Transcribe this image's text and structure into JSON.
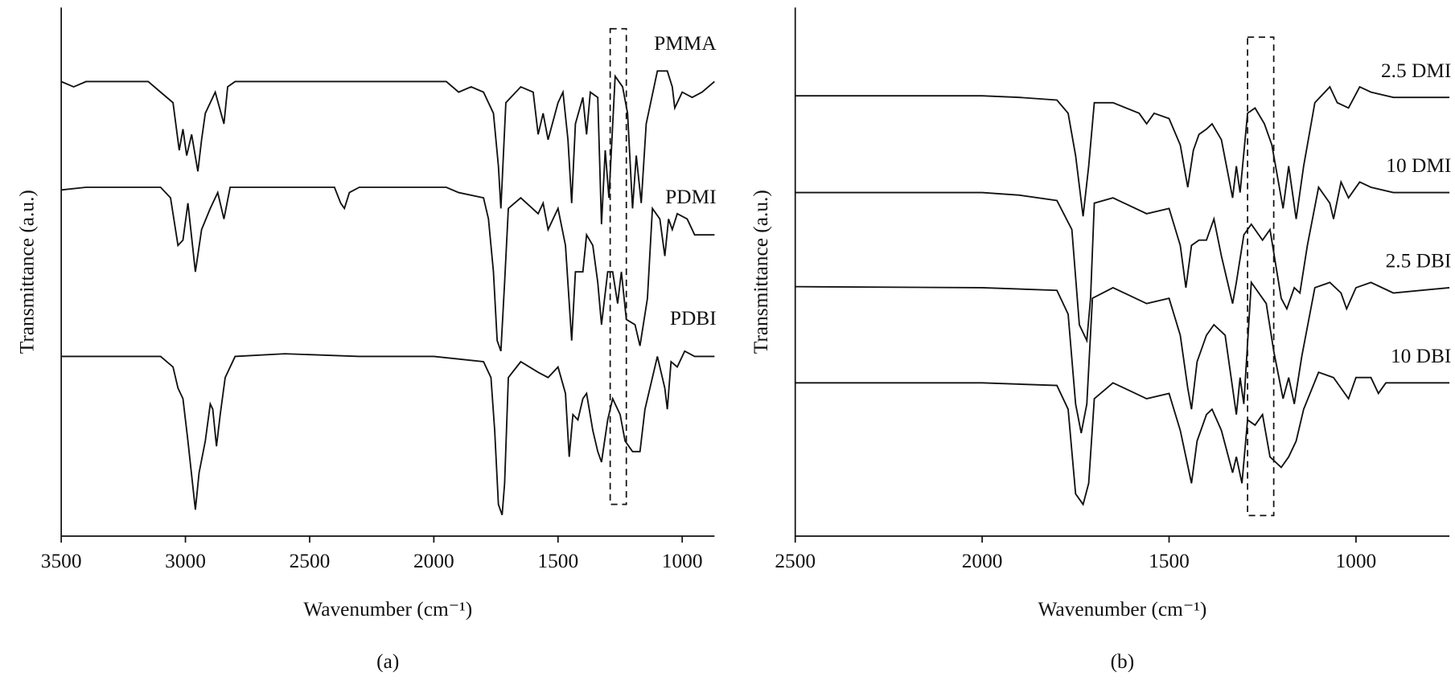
{
  "chart_data": [
    {
      "type": "line",
      "caption": "(a)",
      "x_label": "Wavenumber (cm⁻¹)",
      "y_label": "Transmittance (a.u.)",
      "xlim": [
        3500,
        870
      ],
      "xticks": [
        3500,
        3000,
        2500,
        2000,
        1500,
        1000
      ],
      "ylim": [
        0,
        100
      ],
      "highlight_x": [
        1290,
        1225
      ],
      "highlight_y": [
        96,
        6
      ],
      "series": [
        {
          "name": "PMMA",
          "color": "#111111",
          "x": [
            3500,
            3450,
            3400,
            3150,
            3100,
            3050,
            3025,
            3010,
            2995,
            2975,
            2950,
            2935,
            2920,
            2880,
            2845,
            2830,
            2800,
            1950,
            1900,
            1850,
            1800,
            1760,
            1740,
            1730,
            1710,
            1650,
            1600,
            1580,
            1560,
            1540,
            1500,
            1480,
            1460,
            1445,
            1430,
            1400,
            1385,
            1370,
            1340,
            1325,
            1310,
            1295,
            1270,
            1240,
            1220,
            1200,
            1185,
            1165,
            1145,
            1100,
            1060,
            1040,
            1030,
            1000,
            960,
            920,
            870
          ],
          "values": [
            86,
            85,
            86,
            86,
            84,
            82,
            73,
            77,
            72,
            76,
            69,
            75,
            80,
            84,
            78,
            85,
            86,
            86,
            84,
            85,
            84,
            80,
            70,
            62,
            82,
            85,
            84,
            76,
            80,
            75,
            82,
            84,
            75,
            63,
            78,
            83,
            76,
            84,
            83,
            59,
            73,
            64,
            87,
            85,
            80,
            62,
            72,
            63,
            78,
            88,
            88,
            85,
            81,
            84,
            83,
            84,
            86
          ]
        },
        {
          "name": "PDMI",
          "color": "#111111",
          "x": [
            3500,
            3400,
            3100,
            3060,
            3030,
            3010,
            2990,
            2960,
            2935,
            2900,
            2870,
            2845,
            2820,
            2400,
            2375,
            2360,
            2340,
            2300,
            1950,
            1900,
            1800,
            1780,
            1760,
            1745,
            1730,
            1715,
            1700,
            1650,
            1580,
            1560,
            1540,
            1500,
            1470,
            1445,
            1430,
            1400,
            1385,
            1360,
            1340,
            1325,
            1300,
            1280,
            1260,
            1245,
            1225,
            1190,
            1170,
            1140,
            1120,
            1090,
            1070,
            1055,
            1040,
            1020,
            980,
            950,
            920,
            870
          ],
          "values": [
            65.5,
            66,
            66,
            64,
            55,
            56,
            63,
            50,
            58,
            62,
            65,
            60,
            66,
            66,
            63,
            62,
            65,
            66,
            66,
            65,
            64,
            60,
            50,
            37,
            35,
            48,
            62,
            64,
            61,
            63,
            58,
            62,
            55,
            37,
            50,
            50,
            57,
            55,
            48,
            40,
            50,
            50,
            44,
            50,
            41,
            40,
            36,
            45,
            62,
            60,
            53,
            60,
            58,
            61,
            60,
            57,
            57,
            57
          ]
        },
        {
          "name": "PDBI",
          "color": "#111111",
          "x": [
            3500,
            3100,
            3050,
            3030,
            3010,
            2990,
            2960,
            2945,
            2920,
            2900,
            2890,
            2875,
            2860,
            2840,
            2800,
            2600,
            2300,
            2000,
            1900,
            1800,
            1770,
            1755,
            1740,
            1725,
            1715,
            1700,
            1650,
            1580,
            1540,
            1500,
            1470,
            1455,
            1440,
            1420,
            1400,
            1385,
            1360,
            1340,
            1325,
            1300,
            1280,
            1250,
            1230,
            1200,
            1170,
            1150,
            1130,
            1100,
            1070,
            1060,
            1045,
            1020,
            990,
            950,
            870
          ],
          "values": [
            34,
            34,
            32,
            28,
            26,
            18,
            5,
            12,
            18,
            25,
            24,
            17,
            23,
            30,
            34,
            34.5,
            34,
            34,
            33.5,
            33,
            30,
            20,
            6,
            4,
            10,
            30,
            33,
            31,
            30,
            32,
            27,
            15,
            23,
            22,
            26,
            27,
            20,
            16,
            14,
            22,
            26,
            23,
            18,
            16,
            16,
            24,
            28,
            34,
            28,
            24,
            33,
            32,
            35,
            34,
            34
          ]
        }
      ]
    },
    {
      "type": "line",
      "caption": "(b)",
      "x_label": "Wavenumber (cm⁻¹)",
      "y_label": "Transmittance (a.u.)",
      "xlim": [
        2500,
        750
      ],
      "xticks": [
        2500,
        2000,
        1500,
        1000
      ],
      "ylim": [
        0,
        100
      ],
      "highlight_x": [
        1290,
        1220
      ],
      "highlight_y": [
        94.4,
        3.9
      ],
      "series": [
        {
          "name": "2.5 DMI",
          "color": "#111111",
          "x": [
            2500,
            2000,
            1900,
            1800,
            1770,
            1750,
            1730,
            1715,
            1700,
            1650,
            1580,
            1560,
            1540,
            1500,
            1470,
            1450,
            1435,
            1420,
            1400,
            1385,
            1360,
            1330,
            1320,
            1310,
            1290,
            1270,
            1245,
            1225,
            1195,
            1180,
            1160,
            1140,
            1110,
            1070,
            1050,
            1020,
            990,
            960,
            900,
            750
          ],
          "values": [
            83.3,
            83.3,
            83,
            82.5,
            80,
            72,
            60.5,
            70,
            82,
            82,
            80,
            78,
            80,
            79,
            74,
            66,
            73,
            76,
            77,
            78,
            75,
            64,
            70,
            65,
            80,
            81,
            78,
            74,
            62,
            70,
            60,
            70,
            82,
            85,
            82,
            81,
            85,
            84,
            83,
            83
          ]
        },
        {
          "name": "10 DMI",
          "color": "#111111",
          "x": [
            2500,
            2000,
            1900,
            1800,
            1760,
            1740,
            1720,
            1710,
            1700,
            1650,
            1560,
            1500,
            1470,
            1455,
            1440,
            1420,
            1400,
            1380,
            1360,
            1330,
            1320,
            1300,
            1280,
            1250,
            1230,
            1200,
            1185,
            1165,
            1150,
            1130,
            1100,
            1070,
            1060,
            1040,
            1020,
            990,
            960,
            900,
            750
          ],
          "values": [
            65,
            65,
            64.5,
            63.5,
            58,
            40,
            37,
            45,
            63,
            64,
            61,
            62,
            55,
            47,
            55,
            56,
            56,
            60,
            53,
            44,
            48,
            57,
            59,
            56,
            58,
            45,
            43,
            47,
            46,
            55,
            66,
            63,
            60,
            67,
            64,
            67,
            66,
            65,
            65
          ]
        },
        {
          "name": "2.5 DBI",
          "color": "#111111",
          "x": [
            2500,
            2000,
            1800,
            1770,
            1750,
            1735,
            1720,
            1705,
            1650,
            1560,
            1500,
            1470,
            1450,
            1440,
            1425,
            1400,
            1380,
            1350,
            1330,
            1320,
            1310,
            1300,
            1280,
            1260,
            1240,
            1220,
            1195,
            1180,
            1165,
            1145,
            1110,
            1070,
            1040,
            1025,
            1000,
            960,
            900,
            750
          ],
          "values": [
            47.2,
            47,
            46.5,
            42,
            25,
            19.5,
            25,
            45,
            47,
            44,
            45,
            38,
            28,
            24,
            33,
            38,
            40,
            38,
            28,
            23,
            30,
            25,
            48,
            46,
            44,
            35,
            26,
            30,
            25,
            34,
            47,
            48,
            46,
            43,
            47,
            48,
            46,
            47
          ]
        },
        {
          "name": "10 DBI",
          "color": "#111111",
          "x": [
            2500,
            2000,
            1800,
            1770,
            1750,
            1730,
            1715,
            1700,
            1650,
            1560,
            1500,
            1470,
            1440,
            1425,
            1400,
            1385,
            1360,
            1330,
            1320,
            1305,
            1290,
            1270,
            1250,
            1230,
            1200,
            1180,
            1160,
            1140,
            1100,
            1060,
            1040,
            1020,
            1000,
            960,
            940,
            920,
            750
          ],
          "values": [
            29,
            29,
            28.5,
            24,
            8,
            6,
            10,
            26,
            29,
            26,
            27,
            20,
            10,
            18,
            23,
            24,
            20,
            12,
            15,
            10,
            22,
            21,
            23,
            15,
            13,
            15,
            18,
            24,
            31,
            30,
            28,
            26,
            30,
            30,
            27,
            29,
            29
          ]
        }
      ]
    }
  ]
}
